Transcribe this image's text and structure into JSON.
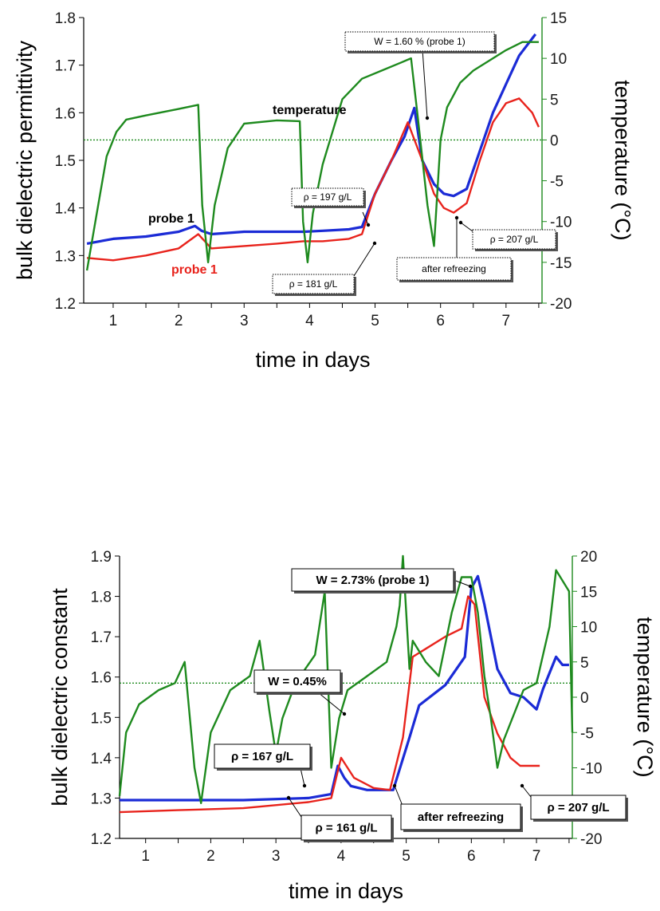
{
  "chart_data": [
    {
      "type": "line",
      "xlabel": "time in days",
      "ylabel": "bulk dielectric permittivity",
      "y2label": "temperature (°C)",
      "xlim": [
        0.55,
        7.55
      ],
      "ylim": [
        1.2,
        1.8
      ],
      "y2lim": [
        -20,
        15
      ],
      "x_ticks": [
        "1",
        "2",
        "3",
        "4",
        "5",
        "6",
        "7"
      ],
      "y_ticks": [
        "1.2",
        "1.3",
        "1.4",
        "1.5",
        "1.6",
        "1.7",
        "1.8"
      ],
      "y2_ticks": [
        "-20",
        "-15",
        "-10",
        "-5",
        "0",
        "5",
        "10",
        "15"
      ],
      "reference_temperature": 0,
      "colors": {
        "blue": "#1b2bd6",
        "red": "#e8231c",
        "green": "#1e8a1e"
      },
      "series": [
        {
          "name": "probe 1",
          "color": "#1b2bd6",
          "axis": "left",
          "x": [
            0.6,
            1.0,
            1.5,
            2.0,
            2.25,
            2.35,
            2.5,
            3.0,
            3.5,
            3.9,
            4.2,
            4.6,
            4.8,
            5.0,
            5.25,
            5.45,
            5.6,
            5.72,
            5.9,
            6.05,
            6.2,
            6.4,
            6.6,
            6.8,
            7.0,
            7.2,
            7.45
          ],
          "y": [
            1.325,
            1.335,
            1.34,
            1.35,
            1.362,
            1.352,
            1.345,
            1.35,
            1.35,
            1.35,
            1.352,
            1.355,
            1.36,
            1.43,
            1.5,
            1.55,
            1.61,
            1.5,
            1.45,
            1.43,
            1.425,
            1.44,
            1.52,
            1.6,
            1.66,
            1.72,
            1.765
          ]
        },
        {
          "name": "probe 1",
          "color": "#e8231c",
          "axis": "left",
          "x": [
            0.6,
            1.0,
            1.5,
            2.0,
            2.3,
            2.5,
            3.0,
            3.5,
            3.9,
            4.2,
            4.6,
            4.8,
            5.0,
            5.25,
            5.5,
            5.72,
            5.9,
            6.05,
            6.2,
            6.4,
            6.6,
            6.8,
            7.0,
            7.2,
            7.4,
            7.5
          ],
          "y": [
            1.295,
            1.29,
            1.3,
            1.315,
            1.345,
            1.315,
            1.32,
            1.325,
            1.33,
            1.33,
            1.335,
            1.345,
            1.43,
            1.5,
            1.58,
            1.5,
            1.43,
            1.4,
            1.39,
            1.41,
            1.5,
            1.58,
            1.62,
            1.63,
            1.6,
            1.57
          ]
        },
        {
          "name": "temperature",
          "color": "#1e8a1e",
          "axis": "right",
          "x": [
            0.6,
            0.75,
            0.9,
            1.05,
            1.2,
            1.5,
            2.0,
            2.3,
            2.36,
            2.45,
            2.55,
            2.75,
            3.0,
            3.5,
            3.85,
            3.9,
            3.97,
            4.05,
            4.2,
            4.5,
            4.8,
            5.1,
            5.4,
            5.55,
            5.65,
            5.8,
            5.9,
            6.0,
            6.1,
            6.3,
            6.5,
            6.8,
            7.0,
            7.25,
            7.5
          ],
          "y": [
            -16,
            -9,
            -2,
            1,
            2.5,
            3,
            3.8,
            4.3,
            -8,
            -15,
            -8,
            -1,
            2,
            2.4,
            2.3,
            -10,
            -15,
            -9,
            -3,
            5,
            7.5,
            8.5,
            9.5,
            10,
            3,
            -8,
            -13,
            0,
            4,
            7,
            8.5,
            10,
            11,
            12,
            12
          ]
        }
      ],
      "labels": [
        {
          "text": "temperature",
          "color": "#000000"
        },
        {
          "text": "probe 1",
          "color": "#000000"
        },
        {
          "text": "probe 1",
          "color": "#e8231c"
        }
      ],
      "annotations": [
        {
          "text": "W = 1.60 % (probe 1)",
          "x": 5.6,
          "y": 1.6
        },
        {
          "text": "ρ = 197 g/L",
          "x": 4.65,
          "y": 1.37
        },
        {
          "text": "ρ = 181 g/L",
          "x": 4.75,
          "y": 1.33
        },
        {
          "text": "after refreezing",
          "x": 6.15,
          "y": 1.39
        },
        {
          "text": "ρ = 207 g/L",
          "x": 6.3,
          "y": 1.395
        }
      ]
    },
    {
      "type": "line",
      "xlabel": "time in days",
      "ylabel": "bulk dielectric constant",
      "y2label": "temperature (°C)",
      "xlim": [
        0.6,
        7.55
      ],
      "ylim": [
        1.2,
        1.9
      ],
      "y2lim": [
        -20,
        20
      ],
      "x_ticks": [
        "1",
        "2",
        "3",
        "4",
        "5",
        "6",
        "7"
      ],
      "y_ticks": [
        "1.2",
        "1.3",
        "1.4",
        "1.5",
        "1.6",
        "1.7",
        "1.8",
        "1.9"
      ],
      "y2_ticks": [
        "-20",
        "-15",
        "-10",
        "-5",
        "0",
        "5",
        "10",
        "15",
        "20"
      ],
      "reference_temperature": 2,
      "colors": {
        "blue": "#1b2bd6",
        "red": "#e8231c",
        "green": "#1e8a1e"
      },
      "series": [
        {
          "name": "",
          "color": "#1b2bd6",
          "axis": "left",
          "x": [
            0.6,
            1.5,
            2.5,
            3.5,
            3.85,
            3.95,
            4.05,
            4.15,
            4.4,
            4.8,
            5.05,
            5.2,
            5.6,
            5.9,
            6.0,
            6.1,
            6.2,
            6.4,
            6.6,
            6.8,
            7.0,
            7.1,
            7.3,
            7.4,
            7.5
          ],
          "y": [
            1.295,
            1.295,
            1.295,
            1.3,
            1.31,
            1.38,
            1.35,
            1.33,
            1.32,
            1.32,
            1.45,
            1.53,
            1.58,
            1.65,
            1.82,
            1.85,
            1.78,
            1.62,
            1.56,
            1.55,
            1.52,
            1.57,
            1.65,
            1.63,
            1.63
          ]
        },
        {
          "name": "",
          "color": "#e8231c",
          "axis": "left",
          "x": [
            0.6,
            1.5,
            2.5,
            3.5,
            3.85,
            4.0,
            4.2,
            4.5,
            4.75,
            4.95,
            5.1,
            5.3,
            5.6,
            5.85,
            5.95,
            6.05,
            6.2,
            6.4,
            6.6,
            6.75,
            7.05
          ],
          "y": [
            1.265,
            1.27,
            1.275,
            1.29,
            1.3,
            1.4,
            1.35,
            1.325,
            1.32,
            1.45,
            1.65,
            1.67,
            1.7,
            1.72,
            1.8,
            1.78,
            1.55,
            1.46,
            1.4,
            1.38,
            1.38
          ]
        },
        {
          "name": "",
          "color": "#1e8a1e",
          "axis": "right",
          "x": [
            0.6,
            0.7,
            0.9,
            1.2,
            1.45,
            1.6,
            1.75,
            1.85,
            2.0,
            2.3,
            2.6,
            2.75,
            2.9,
            3.0,
            3.1,
            3.3,
            3.6,
            3.75,
            3.85,
            3.97,
            4.1,
            4.4,
            4.7,
            4.85,
            4.9,
            4.95,
            5.05,
            5.1,
            5.3,
            5.5,
            5.7,
            5.85,
            6.0,
            6.1,
            6.2,
            6.3,
            6.4,
            6.5,
            6.8,
            7.0,
            7.2,
            7.3,
            7.5,
            7.55
          ],
          "y": [
            -14,
            -5,
            -1,
            1,
            2,
            5,
            -10,
            -15,
            -5,
            1,
            3,
            8,
            -2,
            -8,
            -3,
            2,
            6,
            15,
            -10,
            -3,
            1,
            3,
            5,
            10,
            13,
            20,
            4,
            8,
            5,
            3,
            12,
            17,
            17,
            12,
            3,
            -3,
            -10,
            -6,
            1,
            2,
            10,
            18,
            15,
            -5
          ]
        }
      ],
      "annotations": [
        {
          "text": "W = 2.73% (probe 1)",
          "x": 6.0,
          "y": 1.84
        },
        {
          "text": "W = 0.45%",
          "x": 3.95,
          "y": 1.39
        },
        {
          "text": "ρ = 167 g/L",
          "x": 3.3,
          "y": 1.29
        },
        {
          "text": "ρ = 161 g/L",
          "x": 3.7,
          "y": 1.295
        },
        {
          "text": "after refreezing",
          "x": 4.75,
          "y": 1.32
        },
        {
          "text": "ρ = 207 g/L",
          "x": 6.65,
          "y": 1.38
        }
      ]
    }
  ]
}
